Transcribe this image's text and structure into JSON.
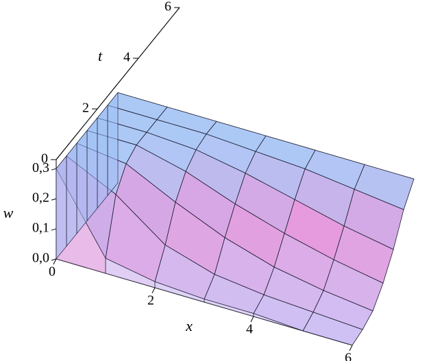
{
  "chart_data": {
    "type": "surface3d",
    "xlabel": "x",
    "tlabel": "t",
    "wlabel": "w",
    "x": [
      0,
      1,
      2,
      3,
      4,
      5,
      6
    ],
    "t": [
      0,
      0.5,
      1,
      1.5,
      2,
      2.5,
      3
    ],
    "w": [
      [
        0.3,
        0.05,
        0.02,
        0.01,
        0.01,
        0.0,
        0.0
      ],
      [
        0.3,
        0.22,
        0.1,
        0.05,
        0.03,
        0.02,
        0.01
      ],
      [
        0.3,
        0.28,
        0.2,
        0.13,
        0.08,
        0.05,
        0.03
      ],
      [
        0.3,
        0.3,
        0.26,
        0.2,
        0.15,
        0.11,
        0.08
      ],
      [
        0.3,
        0.3,
        0.29,
        0.26,
        0.22,
        0.18,
        0.15
      ],
      [
        0.3,
        0.3,
        0.3,
        0.29,
        0.28,
        0.26,
        0.24
      ],
      [
        0.3,
        0.3,
        0.3,
        0.3,
        0.3,
        0.3,
        0.3
      ]
    ],
    "xlim": [
      0,
      6
    ],
    "tlim": [
      0,
      6
    ],
    "wlim": [
      0,
      0.33
    ],
    "xticks": [
      0,
      2,
      4,
      6
    ],
    "tticks": [
      0,
      2,
      4,
      6
    ],
    "wticks": [
      {
        "value": 0.0,
        "label": "0,0"
      },
      {
        "value": 0.1,
        "label": "0,1"
      },
      {
        "value": 0.2,
        "label": "0,2"
      },
      {
        "value": 0.3,
        "label": "0,3"
      }
    ],
    "colors": {
      "high": "#9ec0f5",
      "mid": "#e08ad8",
      "low": "#c6b8f2"
    }
  }
}
